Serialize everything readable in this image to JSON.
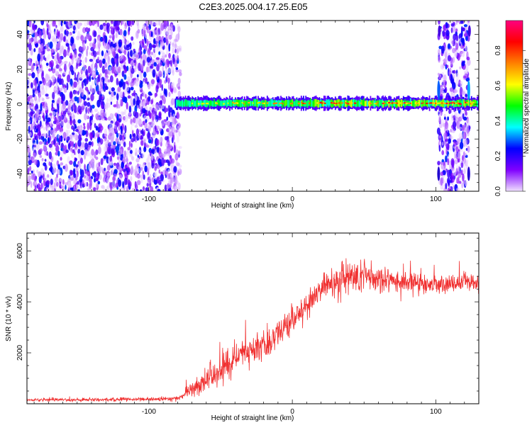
{
  "title": "C2E3.2025.004.17.25.E05",
  "chart_data": [
    {
      "type": "heatmap",
      "name": "spectrogram",
      "xlabel": "Height of straight line (km)",
      "ylabel": "Frequency (Hz)",
      "xlim": [
        -185,
        130
      ],
      "ylim": [
        -50,
        48
      ],
      "x_ticks": [
        -100,
        0,
        100
      ],
      "y_ticks": [
        -40,
        -20,
        0,
        20,
        40
      ],
      "colorbar": {
        "label": "Normalized spectral amplitude",
        "range": [
          0,
          0.97
        ],
        "ticks": [
          "0.0",
          "0.2",
          "0.4",
          "0.6",
          "0.8"
        ],
        "colors": [
          "#f0e0ff",
          "#8000ff",
          "#0000ff",
          "#00ffff",
          "#00ff00",
          "#ffff00",
          "#ff8000",
          "#ff0000",
          "#ff0080"
        ]
      },
      "noise_regions_km": [
        [
          -185,
          -78
        ],
        [
          102,
          123
        ]
      ],
      "signal_band": {
        "x_start": -82,
        "x_end": 130,
        "freq_center_hz": 0.5,
        "freq_halfwidth_hz": 3
      }
    },
    {
      "type": "line",
      "name": "snr",
      "xlabel": "Height of straight line (km)",
      "ylabel": "SNR (10 * v/v)",
      "xlim": [
        -185,
        130
      ],
      "ylim": [
        0,
        6700
      ],
      "x_ticks": [
        -100,
        0,
        100
      ],
      "y_ticks": [
        2000,
        4000,
        6000
      ],
      "series": [
        {
          "color": "#f03030",
          "x": [
            -185,
            -150,
            -120,
            -95,
            -85,
            -78,
            -72,
            -65,
            -58,
            -50,
            -42,
            -35,
            -28,
            -20,
            -12,
            -5,
            0,
            5,
            10,
            15,
            20,
            25,
            30,
            35,
            40,
            45,
            50,
            55,
            60,
            70,
            80,
            90,
            100,
            110,
            120,
            130
          ],
          "y": [
            150,
            160,
            170,
            180,
            190,
            250,
            500,
            750,
            1000,
            1300,
            1700,
            1950,
            2150,
            2350,
            2700,
            2950,
            3250,
            3550,
            3900,
            4200,
            4500,
            4650,
            4750,
            4900,
            5000,
            5000,
            5050,
            4950,
            4850,
            4800,
            4750,
            4700,
            4700,
            4700,
            4750,
            4750
          ],
          "spread": [
            60,
            70,
            70,
            70,
            80,
            150,
            350,
            450,
            500,
            550,
            600,
            600,
            600,
            650,
            650,
            650,
            600,
            600,
            600,
            600,
            650,
            700,
            700,
            700,
            750,
            800,
            850,
            700,
            600,
            500,
            450,
            400,
            400,
            400,
            400,
            400
          ]
        }
      ]
    }
  ]
}
